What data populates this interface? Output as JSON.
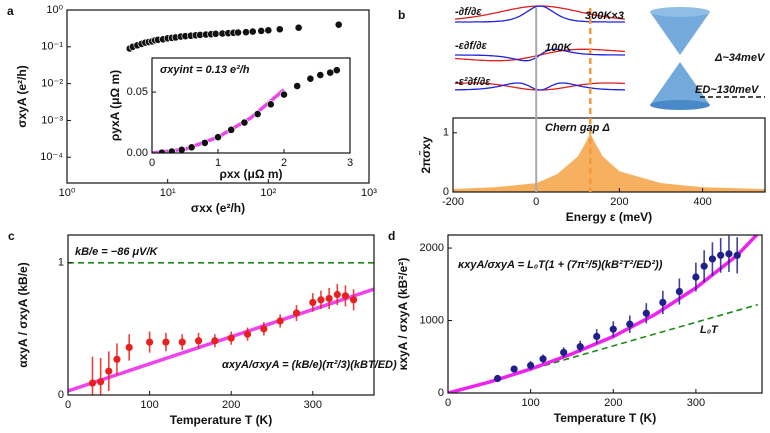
{
  "chart_data": [
    {
      "type": "scatter",
      "label": "a",
      "xlabel": "σxx (e²/h)",
      "ylabel": "σxyA (e²/h)",
      "xscale": "log",
      "yscale": "log",
      "xlim": [
        1,
        1000
      ],
      "ylim": [
        2e-05,
        1
      ],
      "xticks": [
        {
          "value": 1,
          "label": "10⁰"
        },
        {
          "value": 10,
          "label": "10¹"
        },
        {
          "value": 100,
          "label": "10²"
        },
        {
          "value": 1000,
          "label": "10³"
        }
      ],
      "yticks": [
        {
          "value": 0.0001,
          "label": "10⁻⁴"
        },
        {
          "value": 0.001,
          "label": "10⁻³"
        },
        {
          "value": 0.01,
          "label": "10⁻²"
        },
        {
          "value": 0.1,
          "label": "10⁻¹"
        },
        {
          "value": 1,
          "label": "10⁰"
        }
      ],
      "series": [
        {
          "style": "points",
          "color": "#111111",
          "x": [
            4.2,
            4.5,
            5,
            5.5,
            6,
            6.5,
            7,
            7.5,
            8,
            9,
            10,
            11,
            12,
            13.5,
            15,
            17,
            19,
            21,
            24,
            27,
            30,
            35,
            40,
            45,
            50,
            60,
            70,
            85,
            100,
            130,
            200,
            500
          ],
          "values": [
            0.09,
            0.1,
            0.11,
            0.12,
            0.13,
            0.135,
            0.14,
            0.15,
            0.155,
            0.16,
            0.17,
            0.175,
            0.18,
            0.19,
            0.195,
            0.2,
            0.205,
            0.21,
            0.215,
            0.22,
            0.225,
            0.23,
            0.235,
            0.24,
            0.245,
            0.25,
            0.26,
            0.27,
            0.28,
            0.3,
            0.33,
            0.4
          ]
        }
      ]
    },
    {
      "type": "scatter",
      "xlabel": "ρxx (μΩ m)",
      "ylabel": "ρyxA (μΩ m)",
      "xlim": [
        0,
        3
      ],
      "ylim": [
        0,
        0.078
      ],
      "xticks": [
        0,
        1,
        2,
        3
      ],
      "yticks": [
        {
          "value": 0,
          "label": "0.00"
        },
        {
          "value": 0.05,
          "label": "0.05"
        }
      ],
      "annotations": [
        {
          "text": "σxyint = 0.13 e²/h",
          "color": "#e020e0"
        }
      ],
      "series": [
        {
          "style": "line",
          "color": "#ee44ee",
          "x": [
            0,
            0.5,
            1,
            1.5,
            2
          ],
          "values": [
            0,
            0.003,
            0.013,
            0.029,
            0.052
          ]
        },
        {
          "style": "points",
          "color": "#111111",
          "x": [
            0.15,
            0.3,
            0.45,
            0.6,
            0.8,
            1.0,
            1.2,
            1.4,
            1.6,
            1.8,
            2.0,
            2.2,
            2.4,
            2.55,
            2.7,
            2.8
          ],
          "values": [
            0.0003,
            0.0012,
            0.0026,
            0.0047,
            0.0083,
            0.013,
            0.019,
            0.025,
            0.032,
            0.04,
            0.048,
            0.055,
            0.061,
            0.064,
            0.066,
            0.068
          ]
        }
      ]
    },
    {
      "type": "area",
      "label": "b",
      "xlabel": "Energy ε (meV)",
      "ylabel": "2πσ̃xy",
      "xlim": [
        -200,
        550
      ],
      "ylim": [
        0,
        1.25
      ],
      "xticks": [
        -200,
        0,
        200,
        400
      ],
      "yticks": [
        0,
        1
      ],
      "vlines": [
        {
          "x": 0,
          "color": "#aaaaaa"
        },
        {
          "x": 130,
          "color": "#f39a3c",
          "dashed": true
        }
      ],
      "annotations": [
        {
          "text": "-∂f/∂ε",
          "color": "#111111"
        },
        {
          "text": "-ε∂f/∂ε",
          "color": "#111111"
        },
        {
          "text": "-ε²∂f/∂ε",
          "color": "#111111"
        },
        {
          "text": "300K×3",
          "color": "#e02020"
        },
        {
          "text": "100K",
          "color": "#2020e0"
        },
        {
          "text": "Δ~34meV",
          "color": "#f07820"
        },
        {
          "text": "ED~130meV",
          "color": "#111111"
        },
        {
          "text": "Chern gap Δ",
          "color": "#f07820"
        }
      ],
      "series": [
        {
          "style": "area",
          "color": "#f7b060",
          "x": [
            -200,
            -100,
            0,
            50,
            100,
            120,
            130,
            140,
            160,
            200,
            300,
            400,
            550
          ],
          "values": [
            0.05,
            0.08,
            0.15,
            0.3,
            0.6,
            0.85,
            1.0,
            0.85,
            0.6,
            0.35,
            0.15,
            0.08,
            0.05
          ]
        }
      ]
    },
    {
      "type": "scatter",
      "label": "c",
      "xlabel": "Temperature T (K)",
      "ylabel": "αxyA / σxyA (kB/e)",
      "xlim": [
        0,
        375
      ],
      "ylim": [
        0,
        1.21
      ],
      "xticks": [
        0,
        100,
        200,
        300
      ],
      "yticks": [
        0,
        1
      ],
      "annotations": [
        {
          "text": "kB/e = −86 μV/K",
          "color": "#1a7a1a"
        },
        {
          "text": "αxyA/σxyA = (kB/e)(π²/3)(kBT/ED)",
          "color": "#e020e0"
        }
      ],
      "series": [
        {
          "style": "dashed",
          "color": "#1a8a1a",
          "x": [
            0,
            375
          ],
          "values": [
            1,
            1
          ]
        },
        {
          "style": "line",
          "color": "#ee44ee",
          "x": [
            0,
            375
          ],
          "values": [
            0.03,
            0.8
          ]
        },
        {
          "style": "points",
          "color": "#e82020",
          "x": [
            30,
            40,
            50,
            60,
            75,
            100,
            120,
            140,
            160,
            180,
            200,
            220,
            240,
            260,
            280,
            300,
            310,
            320,
            330,
            340,
            350
          ],
          "values": [
            0.09,
            0.1,
            0.18,
            0.27,
            0.36,
            0.4,
            0.4,
            0.4,
            0.41,
            0.41,
            0.43,
            0.46,
            0.5,
            0.56,
            0.62,
            0.7,
            0.72,
            0.73,
            0.76,
            0.75,
            0.72
          ],
          "errors": [
            0.2,
            0.18,
            0.15,
            0.12,
            0.1,
            0.08,
            0.07,
            0.06,
            0.06,
            0.05,
            0.05,
            0.05,
            0.05,
            0.05,
            0.06,
            0.07,
            0.07,
            0.08,
            0.08,
            0.08,
            0.08
          ]
        }
      ]
    },
    {
      "type": "scatter",
      "label": "d",
      "xlabel": "Temperature T (K)",
      "ylabel": "κxyA / σxyA (kB²/e²)",
      "xlim": [
        0,
        380
      ],
      "ylim": [
        0,
        2180
      ],
      "xticks": [
        0,
        100,
        200,
        300
      ],
      "yticks": [
        0,
        1000,
        2000
      ],
      "annotations": [
        {
          "text": "κxyA/σxyA = L₀T(1 + (7π²/5)(kB²T²/ED²))",
          "color": "#e020e0"
        },
        {
          "text": "L₀T",
          "color": "#1a7a1a"
        }
      ],
      "series": [
        {
          "style": "dashed",
          "color": "#1a8a1a",
          "x": [
            0,
            375
          ],
          "values": [
            0,
            1220
          ]
        },
        {
          "style": "line",
          "color": "#ee22ee",
          "x": [
            0,
            50,
            100,
            150,
            200,
            250,
            300,
            350,
            375
          ],
          "values": [
            0,
            150,
            330,
            540,
            780,
            1080,
            1450,
            1900,
            2200
          ]
        },
        {
          "style": "points",
          "color": "#20208a",
          "x": [
            60,
            80,
            100,
            115,
            140,
            160,
            180,
            200,
            220,
            240,
            260,
            280,
            300,
            310,
            320,
            330,
            340,
            350
          ],
          "values": [
            200,
            330,
            380,
            470,
            560,
            640,
            780,
            880,
            950,
            1100,
            1250,
            1400,
            1600,
            1750,
            1850,
            1900,
            1920,
            1900
          ],
          "errors": [
            40,
            50,
            60,
            60,
            70,
            80,
            100,
            110,
            120,
            140,
            160,
            180,
            200,
            220,
            230,
            240,
            250,
            250
          ]
        }
      ]
    }
  ]
}
